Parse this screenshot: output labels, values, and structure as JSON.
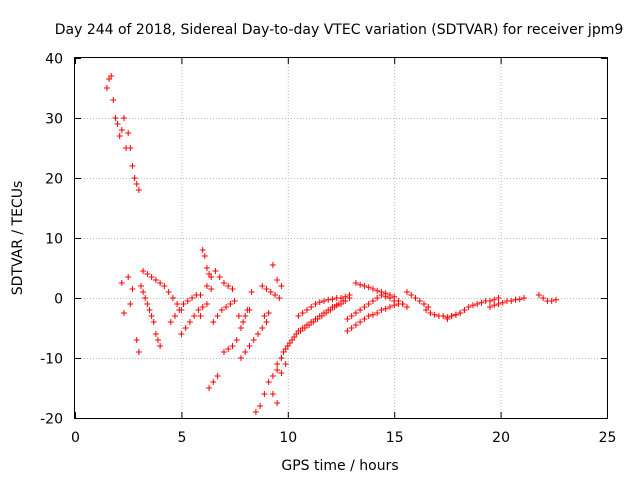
{
  "chart_data": {
    "type": "scatter",
    "title": "Day 244 of 2018, Sidereal Day-to-day VTEC variation (SDTVAR) for receiver jpm9",
    "xlabel": "GPS time / hours",
    "ylabel": "SDTVAR / TECUs",
    "xlim": [
      0,
      25
    ],
    "ylim": [
      -20,
      40
    ],
    "xticks": [
      "0",
      "5",
      "10",
      "15",
      "20",
      "25"
    ],
    "yticks": [
      "-20",
      "-10",
      "0",
      "10",
      "20",
      "30",
      "40"
    ],
    "grid": true,
    "marker": "+",
    "colors": {
      "points": "#ff0000",
      "grid": "#b8b8b8",
      "axes": "#000000"
    },
    "series": [
      {
        "name": "SDTVAR",
        "x": [
          1.5,
          1.6,
          1.7,
          1.8,
          1.9,
          2.0,
          2.1,
          2.2,
          2.3,
          2.4,
          2.5,
          2.6,
          2.7,
          2.8,
          2.9,
          3.0,
          2.2,
          2.3,
          2.5,
          2.6,
          2.7,
          2.9,
          3.0,
          3.1,
          3.2,
          3.3,
          3.4,
          3.5,
          3.6,
          3.7,
          3.8,
          3.9,
          4.0,
          3.2,
          3.4,
          3.6,
          3.8,
          4.0,
          4.2,
          4.4,
          4.6,
          4.8,
          5.0,
          4.5,
          4.7,
          4.9,
          5.1,
          5.3,
          5.5,
          5.7,
          5.9,
          5.0,
          5.2,
          5.4,
          5.6,
          5.8,
          6.0,
          6.2,
          5.9,
          6.0,
          6.1,
          6.2,
          6.3,
          6.4,
          6.2,
          6.4,
          6.6,
          6.8,
          7.0,
          7.2,
          7.4,
          6.3,
          6.5,
          6.7,
          6.5,
          6.7,
          6.9,
          7.1,
          7.3,
          7.5,
          7.7,
          7.9,
          8.1,
          8.3,
          7.0,
          7.2,
          7.4,
          7.6,
          7.8,
          8.0,
          8.2,
          7.8,
          8.0,
          8.2,
          8.4,
          8.6,
          8.8,
          9.0,
          8.5,
          8.7,
          8.9,
          9.1,
          9.3,
          9.5,
          9.7,
          8.8,
          9.0,
          9.2,
          9.4,
          9.6,
          9.3,
          9.5,
          9.7,
          9.9,
          8.9,
          9.1,
          9.3,
          9.5,
          9.7,
          9.5,
          9.7,
          9.9,
          10.1,
          10.3,
          10.5,
          10.7,
          10.9,
          11.1,
          11.3,
          11.5,
          11.7,
          11.9,
          12.1,
          12.3,
          12.5,
          12.7,
          12.9,
          9.8,
          10.0,
          10.2,
          10.4,
          10.6,
          10.8,
          11.0,
          11.2,
          11.4,
          11.6,
          11.8,
          12.0,
          12.2,
          12.4,
          12.6,
          10.5,
          10.7,
          10.9,
          11.1,
          11.3,
          11.5,
          11.7,
          11.9,
          12.1,
          12.3,
          12.5,
          12.7,
          12.9,
          12.8,
          13.0,
          13.2,
          13.4,
          13.6,
          13.8,
          14.0,
          14.2,
          14.4,
          14.6,
          14.8,
          15.0,
          15.2,
          15.4,
          12.8,
          13.0,
          13.2,
          13.4,
          13.6,
          13.8,
          14.0,
          14.2,
          14.4,
          14.6,
          14.8,
          15.0,
          13.2,
          13.4,
          13.6,
          13.8,
          14.0,
          14.2,
          14.4,
          14.6,
          14.8,
          15.0,
          15.2,
          15.4,
          15.6,
          15.6,
          15.8,
          16.0,
          16.2,
          16.4,
          16.6,
          16.5,
          16.7,
          16.9,
          17.1,
          17.3,
          17.5,
          17.7,
          17.9,
          18.1,
          18.3,
          17.5,
          17.7,
          17.9,
          18.1,
          18.3,
          18.5,
          18.7,
          18.9,
          19.1,
          19.3,
          19.5,
          19.7,
          19.9,
          19.5,
          19.7,
          19.9,
          20.1,
          20.3,
          20.5,
          20.7,
          20.9,
          21.1,
          21.8,
          22.0,
          22.2,
          22.4,
          22.6
        ],
        "y": [
          35,
          36.5,
          37,
          33,
          30,
          29,
          27,
          28,
          30,
          25,
          27.5,
          25,
          22,
          20,
          19,
          18,
          2.5,
          -2.5,
          3.5,
          -1,
          1.5,
          -7,
          -9,
          2,
          1,
          0,
          -1,
          -2,
          -3,
          -4,
          -6,
          -7,
          -8,
          4.5,
          4,
          3.5,
          3,
          2.5,
          2,
          1,
          0,
          -1,
          -2,
          -4,
          -3,
          -2,
          -1,
          -0.5,
          0,
          0.5,
          0.5,
          -6,
          -5,
          -4,
          -3,
          -2,
          -1.5,
          -1,
          -3,
          8,
          7,
          5,
          4,
          3.5,
          2,
          1.5,
          4.5,
          3.5,
          2.5,
          2,
          1.5,
          -15,
          -14,
          -13,
          -4,
          -3,
          -2,
          -1.5,
          -1,
          -0.5,
          -3,
          -4,
          -2,
          1,
          -9,
          -8.5,
          -8,
          -7,
          -5,
          -3,
          -2,
          -10,
          -9,
          -8,
          -7,
          -6,
          -5,
          -4,
          -19,
          -18,
          -16,
          -14,
          -13,
          -12,
          -10,
          2,
          1.5,
          1,
          0.5,
          0,
          -16,
          -17.5,
          -12.5,
          -11,
          -3,
          -2.5,
          5.5,
          3,
          2,
          -11,
          -10,
          -8.5,
          -7.5,
          -6.5,
          -5.5,
          -5,
          -4.5,
          -4,
          -3.5,
          -3,
          -2.5,
          -2,
          -1.5,
          -1.2,
          -1,
          -0.5,
          0,
          -9,
          -8,
          -7,
          -6,
          -5.5,
          -5,
          -4.5,
          -4,
          -3.5,
          -3,
          -2.5,
          -2,
          -1.5,
          -1,
          -0.5,
          -3,
          -2.5,
          -2,
          -1.5,
          -1,
          -0.7,
          -0.5,
          -0.3,
          -0.2,
          0,
          0,
          0.2,
          0.5,
          -5.5,
          -5,
          -4.5,
          -4,
          -3.5,
          -3,
          -2.8,
          -2.5,
          -2,
          -1.8,
          -1.5,
          -1.2,
          -1,
          -1,
          -3.5,
          -3,
          -2.5,
          -2,
          -1.5,
          -1,
          -0.5,
          0,
          0.5,
          0.2,
          0,
          -0.5,
          2.5,
          2.2,
          2,
          1.8,
          1.5,
          1.2,
          1,
          0.8,
          0.5,
          0.2,
          -0.5,
          -1,
          -1.5,
          1,
          0.5,
          0,
          -0.5,
          -1,
          -1.5,
          -2,
          -2.5,
          -2.8,
          -3,
          -3,
          -3.2,
          -3,
          -2.8,
          -2.5,
          -2,
          -3.5,
          -3,
          -2.8,
          -2.5,
          -2,
          -1.5,
          -1.2,
          -1,
          -0.8,
          -0.5,
          -0.5,
          -0.3,
          0,
          -1.5,
          -1.2,
          -1,
          -0.8,
          -0.5,
          -0.5,
          -0.3,
          -0.2,
          0,
          0.5,
          0,
          -0.5,
          -0.5,
          -0.3
        ]
      }
    ]
  }
}
